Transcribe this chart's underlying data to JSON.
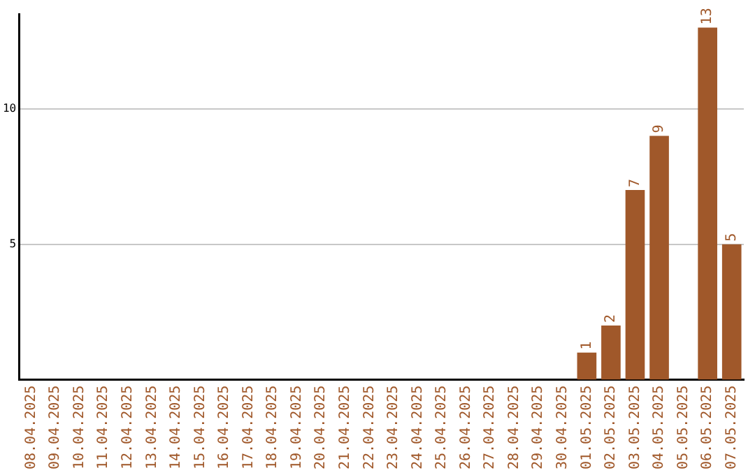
{
  "chart_data": {
    "type": "bar",
    "categories": [
      "08.04.2025",
      "09.04.2025",
      "10.04.2025",
      "11.04.2025",
      "12.04.2025",
      "13.04.2025",
      "14.04.2025",
      "15.04.2025",
      "16.04.2025",
      "17.04.2025",
      "18.04.2025",
      "19.04.2025",
      "20.04.2025",
      "21.04.2025",
      "22.04.2025",
      "23.04.2025",
      "24.04.2025",
      "25.04.2025",
      "26.04.2025",
      "27.04.2025",
      "28.04.2025",
      "29.04.2025",
      "30.04.2025",
      "01.05.2025",
      "02.05.2025",
      "03.05.2025",
      "04.05.2025",
      "05.05.2025",
      "06.05.2025",
      "07.05.2025"
    ],
    "values": [
      0,
      0,
      0,
      0,
      0,
      0,
      0,
      0,
      0,
      0,
      0,
      0,
      0,
      0,
      0,
      0,
      0,
      0,
      0,
      0,
      0,
      0,
      0,
      1,
      2,
      7,
      9,
      0,
      13,
      5
    ],
    "value_labels": [
      null,
      null,
      null,
      null,
      null,
      null,
      null,
      null,
      null,
      null,
      null,
      null,
      null,
      null,
      null,
      null,
      null,
      null,
      null,
      null,
      null,
      null,
      null,
      "1",
      "2",
      "7",
      "9",
      null,
      "13",
      "5"
    ],
    "color": "#a0582a",
    "ylim": [
      0,
      13.5
    ],
    "yticks": [
      5,
      10
    ],
    "grid": "y",
    "legend": false
  }
}
